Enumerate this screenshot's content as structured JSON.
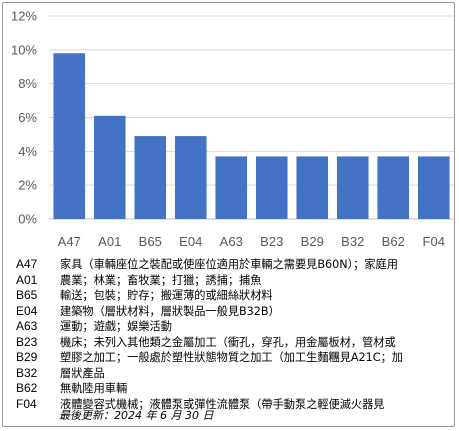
{
  "chart_data": {
    "type": "bar",
    "categories": [
      "A47",
      "A01",
      "B65",
      "E04",
      "A63",
      "B23",
      "B29",
      "B32",
      "B62",
      "F04"
    ],
    "values": [
      9.8,
      6.1,
      4.9,
      4.9,
      3.7,
      3.7,
      3.7,
      3.7,
      3.7,
      3.7
    ],
    "y_ticks": [
      "0%",
      "2%",
      "4%",
      "6%",
      "8%",
      "10%",
      "12%"
    ],
    "ylim": [
      0,
      12
    ],
    "grid": true,
    "bar_color": "#4472c4",
    "grid_color": "#d9d9d9"
  },
  "legend": [
    {
      "code": "A47",
      "desc": "家具（車輛座位之裝配或使座位適用於車輛之需要見B60N）；家庭用"
    },
    {
      "code": "A01",
      "desc": "農業；林業；畜牧業；打獵；誘捕；捕魚"
    },
    {
      "code": "B65",
      "desc": "輸送；包裝；貯存；搬運薄的或細絲狀材料"
    },
    {
      "code": "E04",
      "desc": "建築物（層狀材料，層狀製品一般見B32B）"
    },
    {
      "code": "A63",
      "desc": "運動；遊戲；娛樂活動"
    },
    {
      "code": "B23",
      "desc": "機床；未列入其他類之金屬加工（衝孔，穿孔，用金屬板材，管材或"
    },
    {
      "code": "B29",
      "desc": "塑膠之加工；一般處於塑性狀態物質之加工（加工生麵糰見A21C；加"
    },
    {
      "code": "B32",
      "desc": "層狀產品"
    },
    {
      "code": "B62",
      "desc": "無軌陸用車輛"
    },
    {
      "code": "F04",
      "desc": "液體變容式機械；液體泵或彈性流體泵（帶手動泵之輕便滅火器見"
    }
  ],
  "last_updated": "最後更新：2024 年 6 月 30 日"
}
